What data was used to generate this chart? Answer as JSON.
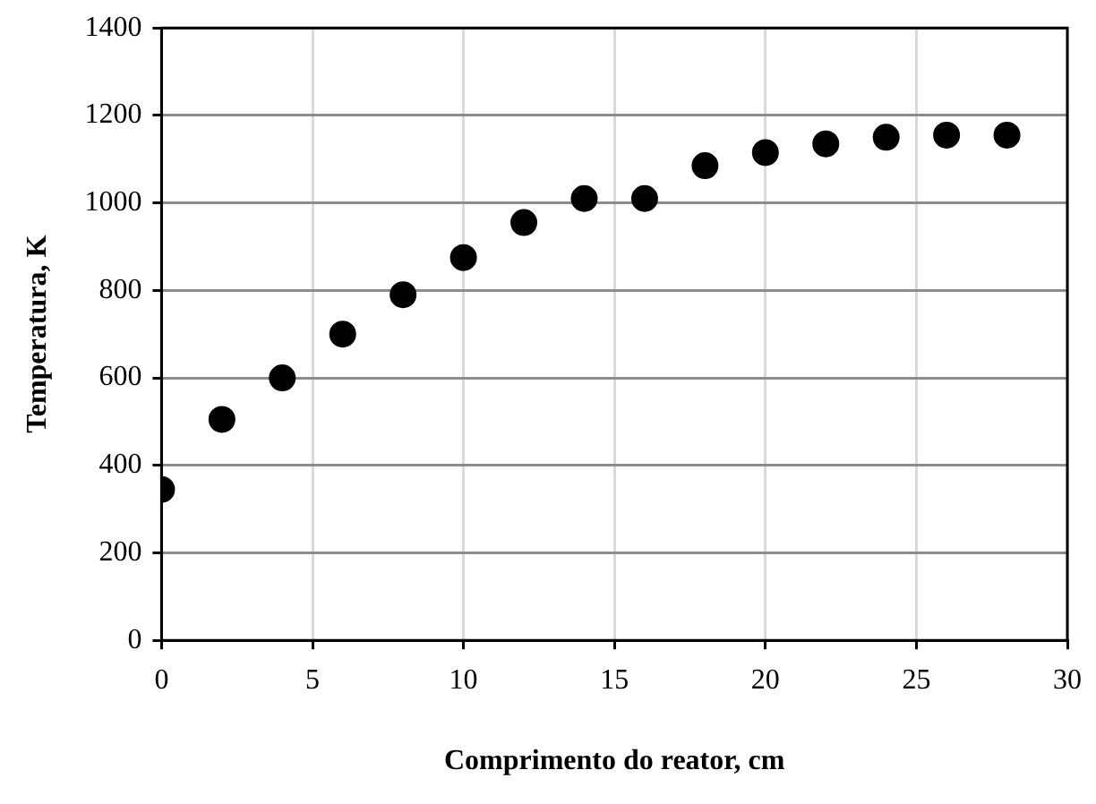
{
  "chart_data": {
    "type": "scatter",
    "xlabel": "Comprimento do reator, cm",
    "ylabel": "Temperatura, K",
    "x": [
      0,
      2,
      4,
      6,
      8,
      10,
      12,
      14,
      16,
      18,
      20,
      22,
      24,
      26,
      28
    ],
    "values": [
      345,
      505,
      600,
      700,
      790,
      875,
      955,
      1010,
      1010,
      1085,
      1115,
      1135,
      1150,
      1155,
      1155
    ],
    "color": "#000000",
    "marker": "circle",
    "xlim": [
      0,
      30
    ],
    "xticks": [
      0,
      5,
      10,
      15,
      20,
      25,
      30
    ],
    "ylim": [
      0,
      1400
    ],
    "yticks": [
      0,
      200,
      400,
      600,
      800,
      1000,
      1200,
      1400
    ],
    "grid": true,
    "legend": false
  }
}
